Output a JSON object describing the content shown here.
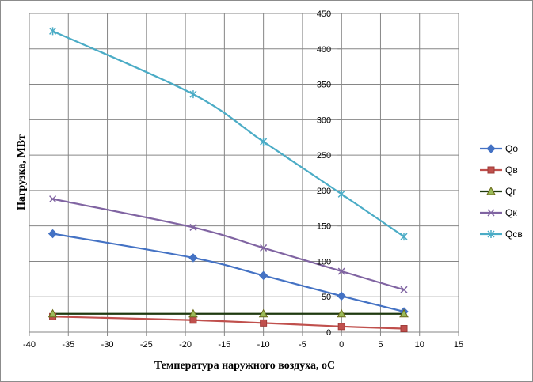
{
  "chart_data": {
    "type": "scatter",
    "title": "",
    "xlabel": "Температура  наружного воздуха, ",
    "xlabel_unit": "oC",
    "ylabel": "Нагрузка, МВт",
    "xlim": [
      -40,
      15
    ],
    "ylim": [
      0,
      450
    ],
    "xticks": [
      -40,
      -35,
      -30,
      -25,
      -20,
      -15,
      -10,
      -5,
      0,
      5,
      10,
      15
    ],
    "yticks": [
      0,
      50,
      100,
      150,
      200,
      250,
      300,
      350,
      400,
      450
    ],
    "grid": "x and y major",
    "legend_position": "right",
    "x": [
      -37,
      -19,
      -10,
      0,
      8
    ],
    "series": [
      {
        "name": "Qо",
        "color": "#4472C4",
        "marker": "diamond",
        "values": [
          139,
          105,
          80,
          51,
          29
        ]
      },
      {
        "name": "Qв",
        "color": "#C0504D",
        "marker": "square",
        "values": [
          22,
          17,
          13,
          8,
          5
        ]
      },
      {
        "name": "Qг",
        "color": "#1F3A0F",
        "marker": "triangle",
        "marker_fill": "#9BBB59",
        "values": [
          26,
          26,
          26,
          26,
          26
        ]
      },
      {
        "name": "Qк",
        "color": "#8064A2",
        "marker": "x",
        "values": [
          188,
          148,
          119,
          86,
          60
        ]
      },
      {
        "name": "Qсв",
        "color": "#4BACC6",
        "marker": "star",
        "values": [
          425,
          336,
          269,
          195,
          135
        ]
      }
    ]
  }
}
